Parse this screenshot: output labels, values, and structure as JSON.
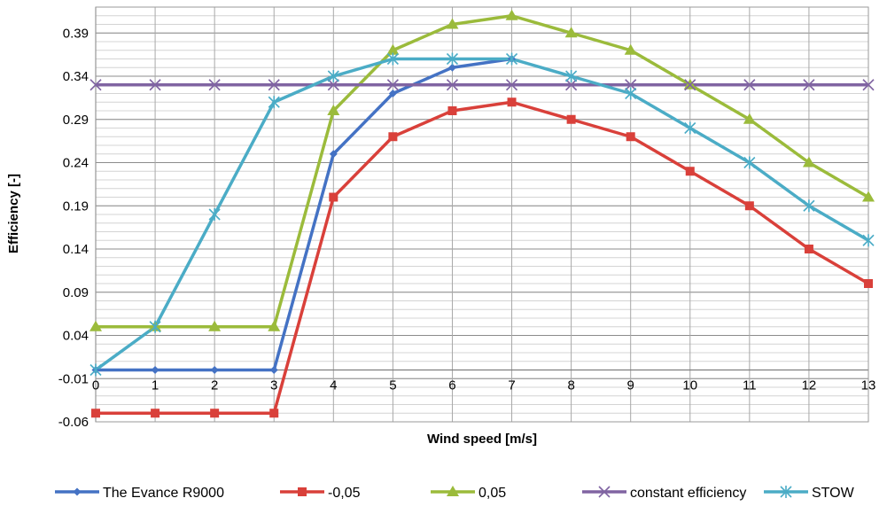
{
  "chart_data": {
    "type": "line",
    "xlabel": "Wind speed [m/s]",
    "ylabel": "Efficiency [-]",
    "x": [
      0,
      1,
      2,
      3,
      4,
      5,
      6,
      7,
      8,
      9,
      10,
      11,
      12,
      13
    ],
    "xlim": [
      0,
      13
    ],
    "ylim": [
      -0.06,
      0.42
    ],
    "yticks": [
      -0.06,
      -0.01,
      0.04,
      0.09,
      0.14,
      0.19,
      0.24,
      0.29,
      0.34,
      0.39
    ],
    "ytick_labels": [
      "-0.06",
      "-0.01",
      "0.04",
      "0.09",
      "0.14",
      "0.19",
      "0.24",
      "0.29",
      "0.34",
      "0.39"
    ],
    "xtick_labels": [
      "0",
      "1",
      "2",
      "3",
      "4",
      "5",
      "6",
      "7",
      "8",
      "9",
      "10",
      "11",
      "12",
      "13"
    ],
    "minor_grid_step": 0.01,
    "grid": true,
    "legend_position": "bottom",
    "series": [
      {
        "name": "The Evance R9000",
        "color": "#4472c4",
        "marker": "diamond",
        "values": [
          0.0,
          0.0,
          0.0,
          0.0,
          0.25,
          0.32,
          0.35,
          0.36,
          null,
          null,
          null,
          null,
          null,
          null
        ]
      },
      {
        "name": "-0,05",
        "color": "#d9403a",
        "marker": "square",
        "values": [
          -0.05,
          -0.05,
          -0.05,
          -0.05,
          0.2,
          0.27,
          0.3,
          0.31,
          0.29,
          0.27,
          0.23,
          0.19,
          0.14,
          0.1
        ]
      },
      {
        "name": "0,05",
        "color": "#9bbb3b",
        "marker": "triangle",
        "values": [
          0.05,
          0.05,
          0.05,
          0.05,
          0.3,
          0.37,
          0.4,
          0.41,
          0.39,
          0.37,
          0.33,
          0.29,
          0.24,
          0.2
        ]
      },
      {
        "name": "constant efficiency",
        "color": "#8064a2",
        "marker": "x",
        "values": [
          0.33,
          0.33,
          0.33,
          0.33,
          0.33,
          0.33,
          0.33,
          0.33,
          0.33,
          0.33,
          0.33,
          0.33,
          0.33,
          0.33
        ]
      },
      {
        "name": "STOW",
        "color": "#4bacc6",
        "marker": "star",
        "values": [
          0.0,
          0.05,
          0.18,
          0.31,
          0.34,
          0.36,
          0.36,
          0.36,
          0.34,
          0.32,
          0.28,
          0.24,
          0.19,
          0.15
        ]
      }
    ]
  }
}
